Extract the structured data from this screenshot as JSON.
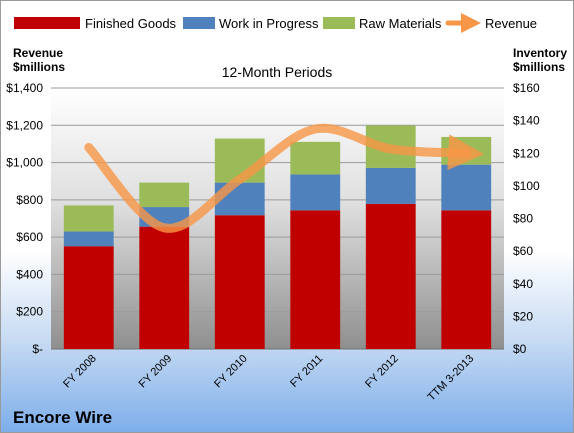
{
  "chart_data": {
    "type": "bar",
    "subtitle": "12-Month Periods",
    "company": "Encore Wire",
    "left_axis_title": [
      "Revenue",
      "$millions"
    ],
    "right_axis_title": [
      "Inventory",
      "$millions"
    ],
    "categories": [
      "FY 2008",
      "FY 2009",
      "FY 2010",
      "FY 2011",
      "FY 2012",
      "TTM 3-2013"
    ],
    "left_axis": {
      "min": 0,
      "max": 1400,
      "step": 200,
      "tick_labels": [
        "$-",
        "$200",
        "$400",
        "$600",
        "$800",
        "$1,000",
        "$1,200",
        "$1,400"
      ]
    },
    "right_axis": {
      "min": 0,
      "max": 160,
      "step": 20,
      "tick_labels": [
        "$0",
        "$20",
        "$40",
        "$60",
        "$80",
        "$100",
        "$120",
        "$140",
        "$160"
      ]
    },
    "stacked": true,
    "series": [
      {
        "name": "Finished Goods",
        "axis": "right",
        "color": "#c00000",
        "values": [
          63,
          75,
          82,
          85,
          89,
          85
        ]
      },
      {
        "name": "Work in Progress",
        "axis": "right",
        "color": "#4f81bd",
        "values": [
          9,
          12,
          20,
          22,
          22,
          28
        ]
      },
      {
        "name": "Raw Materials",
        "axis": "right",
        "color": "#9bbb59",
        "values": [
          16,
          15,
          27,
          20,
          26,
          17
        ]
      },
      {
        "name": "Revenue",
        "type": "line",
        "axis": "left",
        "color": "#f79646",
        "values": [
          1081,
          650,
          910,
          1180,
          1073,
          1050
        ]
      }
    ],
    "legend_position": "top",
    "grid": true
  }
}
